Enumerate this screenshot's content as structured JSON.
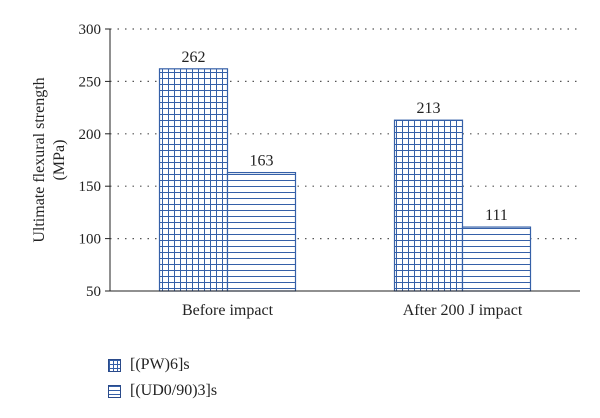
{
  "chart_data": {
    "type": "bar",
    "categories": [
      "Before impact",
      "After 200 J impact"
    ],
    "series": [
      {
        "name": "[(PW)6]s",
        "values": [
          262,
          213
        ],
        "pattern": "grid"
      },
      {
        "name": "[(UD0/90)3]s",
        "values": [
          163,
          111
        ],
        "pattern": "horizontal-lines"
      }
    ],
    "ylabel_lines": [
      "Ultimate flexural strength",
      "(MPa)"
    ],
    "ylim": [
      50,
      300
    ],
    "yticks": [
      50,
      100,
      150,
      200,
      250,
      300
    ],
    "grid": true,
    "legend_position": "bottom-left",
    "colors": {
      "bar_fill": "#ffffff",
      "bar_pattern": "#3560a8",
      "axis": "#222222",
      "grid": "#555555"
    }
  }
}
